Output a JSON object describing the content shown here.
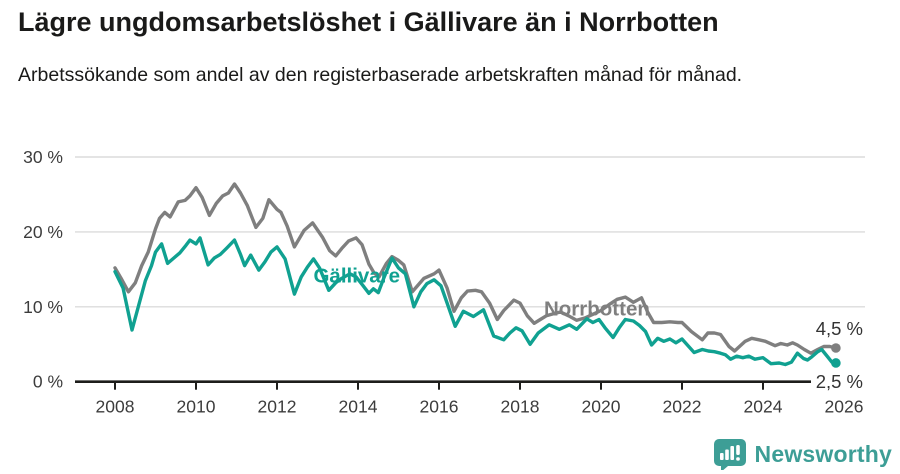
{
  "header": {
    "title": "Lägre ungdomsarbetslöshet i Gällivare än i Norrbotten",
    "subtitle": "Arbetssökande som andel av den registerbaserade arbetskraften månad för månad."
  },
  "footer": {
    "brand": "Newsworthy",
    "brand_color": "#3d9e96",
    "logo_icon": "newsworthy-speech-bubble-bar-chart-icon"
  },
  "colors": {
    "grid": "#dcdcdc",
    "axis": "#1d1d1b",
    "tick_text": "#3c3c3c",
    "background": "#ffffff"
  },
  "chart_data": {
    "type": "line",
    "title": "Lägre ungdomsarbetslöshet i Gällivare än i Norrbotten",
    "subtitle": "Arbetssökande som andel av den registerbaserade arbetskraften månad för månad.",
    "xlabel": "",
    "ylabel": "",
    "grid": "horizontal",
    "legend_position": "inline-labels",
    "x_ticks": [
      2008,
      2010,
      2012,
      2014,
      2016,
      2018,
      2020,
      2022,
      2024,
      2026
    ],
    "y_ticks": [
      {
        "value": 0,
        "label": "0 %"
      },
      {
        "value": 10,
        "label": "10 %"
      },
      {
        "value": 20,
        "label": "20 %"
      },
      {
        "value": 30,
        "label": "30 %"
      }
    ],
    "xlim": [
      2007.0,
      2026.55
    ],
    "ylim": [
      0,
      32
    ],
    "series": [
      {
        "name": "Norrbotten",
        "color": "#7f7f7f",
        "end_label": "4,5 %",
        "end_label_dy": -13,
        "label_pos": {
          "year": 2019.9,
          "value": 9.8
        },
        "points": [
          [
            2008.0,
            15.2
          ],
          [
            2008.15,
            13.8
          ],
          [
            2008.33,
            12.0
          ],
          [
            2008.5,
            13.2
          ],
          [
            2008.66,
            15.5
          ],
          [
            2008.82,
            17.3
          ],
          [
            2009.0,
            20.4
          ],
          [
            2009.1,
            21.8
          ],
          [
            2009.23,
            22.6
          ],
          [
            2009.36,
            22.0
          ],
          [
            2009.56,
            24.0
          ],
          [
            2009.73,
            24.2
          ],
          [
            2009.85,
            24.8
          ],
          [
            2010.0,
            25.9
          ],
          [
            2010.15,
            24.6
          ],
          [
            2010.33,
            22.2
          ],
          [
            2010.5,
            23.8
          ],
          [
            2010.66,
            24.8
          ],
          [
            2010.8,
            25.2
          ],
          [
            2010.95,
            26.4
          ],
          [
            2011.1,
            25.2
          ],
          [
            2011.27,
            23.5
          ],
          [
            2011.48,
            20.6
          ],
          [
            2011.65,
            21.8
          ],
          [
            2011.8,
            24.3
          ],
          [
            2012.0,
            23.0
          ],
          [
            2012.1,
            22.6
          ],
          [
            2012.25,
            20.8
          ],
          [
            2012.43,
            18.0
          ],
          [
            2012.67,
            20.2
          ],
          [
            2012.88,
            21.2
          ],
          [
            2013.12,
            19.3
          ],
          [
            2013.3,
            17.5
          ],
          [
            2013.45,
            16.8
          ],
          [
            2013.6,
            17.8
          ],
          [
            2013.77,
            18.8
          ],
          [
            2013.95,
            19.2
          ],
          [
            2014.1,
            18.3
          ],
          [
            2014.27,
            15.7
          ],
          [
            2014.4,
            14.5
          ],
          [
            2014.52,
            14.0
          ],
          [
            2014.7,
            15.8
          ],
          [
            2014.84,
            16.7
          ],
          [
            2015.0,
            16.2
          ],
          [
            2015.13,
            15.6
          ],
          [
            2015.34,
            12.0
          ],
          [
            2015.5,
            13.0
          ],
          [
            2015.63,
            13.8
          ],
          [
            2015.88,
            14.4
          ],
          [
            2016.0,
            14.9
          ],
          [
            2016.2,
            12.5
          ],
          [
            2016.37,
            9.4
          ],
          [
            2016.55,
            11.2
          ],
          [
            2016.7,
            12.1
          ],
          [
            2016.9,
            12.2
          ],
          [
            2017.05,
            12.0
          ],
          [
            2017.25,
            10.5
          ],
          [
            2017.44,
            8.3
          ],
          [
            2017.6,
            9.5
          ],
          [
            2017.85,
            10.9
          ],
          [
            2018.0,
            10.5
          ],
          [
            2018.18,
            8.8
          ],
          [
            2018.35,
            7.8
          ],
          [
            2018.5,
            8.3
          ],
          [
            2018.65,
            8.8
          ],
          [
            2018.85,
            9.1
          ],
          [
            2019.0,
            9.3
          ],
          [
            2019.2,
            8.8
          ],
          [
            2019.4,
            8.2
          ],
          [
            2019.6,
            8.5
          ],
          [
            2019.8,
            9.0
          ],
          [
            2020.0,
            9.5
          ],
          [
            2020.2,
            10.3
          ],
          [
            2020.4,
            11.0
          ],
          [
            2020.6,
            11.3
          ],
          [
            2020.8,
            10.6
          ],
          [
            2021.0,
            11.2
          ],
          [
            2021.15,
            9.3
          ],
          [
            2021.3,
            7.9
          ],
          [
            2021.5,
            7.9
          ],
          [
            2021.7,
            8.0
          ],
          [
            2021.9,
            7.9
          ],
          [
            2022.0,
            7.9
          ],
          [
            2022.23,
            6.7
          ],
          [
            2022.5,
            5.6
          ],
          [
            2022.64,
            6.5
          ],
          [
            2022.8,
            6.5
          ],
          [
            2022.95,
            6.3
          ],
          [
            2023.16,
            4.7
          ],
          [
            2023.3,
            4.1
          ],
          [
            2023.56,
            5.4
          ],
          [
            2023.72,
            5.8
          ],
          [
            2023.9,
            5.6
          ],
          [
            2024.06,
            5.4
          ],
          [
            2024.3,
            4.8
          ],
          [
            2024.44,
            5.1
          ],
          [
            2024.6,
            4.9
          ],
          [
            2024.73,
            5.2
          ],
          [
            2024.85,
            4.9
          ],
          [
            2025.02,
            4.3
          ],
          [
            2025.18,
            3.8
          ],
          [
            2025.35,
            4.3
          ],
          [
            2025.5,
            4.7
          ],
          [
            2025.65,
            4.7
          ],
          [
            2025.8,
            4.5
          ]
        ]
      },
      {
        "name": "Gällivare",
        "color": "#10a191",
        "end_label": "2,5 %",
        "end_label_dy": 25,
        "label_pos": {
          "year": 2013.97,
          "value": 14.2
        },
        "points": [
          [
            2008.0,
            14.7
          ],
          [
            2008.2,
            12.5
          ],
          [
            2008.42,
            6.9
          ],
          [
            2008.6,
            10.5
          ],
          [
            2008.75,
            13.5
          ],
          [
            2008.9,
            15.5
          ],
          [
            2009.0,
            17.3
          ],
          [
            2009.15,
            18.4
          ],
          [
            2009.3,
            15.8
          ],
          [
            2009.45,
            16.5
          ],
          [
            2009.6,
            17.2
          ],
          [
            2009.75,
            18.2
          ],
          [
            2009.85,
            18.9
          ],
          [
            2010.0,
            18.4
          ],
          [
            2010.1,
            19.2
          ],
          [
            2010.3,
            15.6
          ],
          [
            2010.45,
            16.5
          ],
          [
            2010.6,
            17.0
          ],
          [
            2010.75,
            17.8
          ],
          [
            2010.95,
            18.9
          ],
          [
            2011.1,
            17.0
          ],
          [
            2011.2,
            15.5
          ],
          [
            2011.35,
            16.9
          ],
          [
            2011.55,
            14.9
          ],
          [
            2011.7,
            16.0
          ],
          [
            2011.85,
            17.3
          ],
          [
            2012.0,
            18.0
          ],
          [
            2012.2,
            16.4
          ],
          [
            2012.43,
            11.7
          ],
          [
            2012.6,
            14.0
          ],
          [
            2012.75,
            15.3
          ],
          [
            2012.9,
            16.4
          ],
          [
            2013.05,
            15.2
          ],
          [
            2013.28,
            12.2
          ],
          [
            2013.45,
            13.2
          ],
          [
            2013.6,
            13.8
          ],
          [
            2013.8,
            14.4
          ],
          [
            2013.95,
            14.0
          ],
          [
            2014.1,
            13.0
          ],
          [
            2014.27,
            11.8
          ],
          [
            2014.38,
            12.4
          ],
          [
            2014.5,
            11.9
          ],
          [
            2014.65,
            14.0
          ],
          [
            2014.84,
            16.5
          ],
          [
            2015.0,
            15.2
          ],
          [
            2015.17,
            14.4
          ],
          [
            2015.38,
            10.0
          ],
          [
            2015.55,
            12.0
          ],
          [
            2015.7,
            13.1
          ],
          [
            2015.88,
            13.6
          ],
          [
            2016.05,
            12.8
          ],
          [
            2016.2,
            10.5
          ],
          [
            2016.4,
            7.4
          ],
          [
            2016.6,
            9.4
          ],
          [
            2016.85,
            8.7
          ],
          [
            2017.1,
            9.6
          ],
          [
            2017.35,
            6.1
          ],
          [
            2017.6,
            5.6
          ],
          [
            2017.75,
            6.5
          ],
          [
            2017.9,
            7.2
          ],
          [
            2018.05,
            6.8
          ],
          [
            2018.25,
            5.0
          ],
          [
            2018.45,
            6.5
          ],
          [
            2018.72,
            7.6
          ],
          [
            2018.97,
            7.0
          ],
          [
            2019.22,
            7.6
          ],
          [
            2019.4,
            7.0
          ],
          [
            2019.65,
            8.4
          ],
          [
            2019.8,
            7.9
          ],
          [
            2019.95,
            8.3
          ],
          [
            2020.1,
            7.2
          ],
          [
            2020.3,
            5.9
          ],
          [
            2020.45,
            7.2
          ],
          [
            2020.6,
            8.3
          ],
          [
            2020.8,
            8.1
          ],
          [
            2020.95,
            7.5
          ],
          [
            2021.1,
            6.7
          ],
          [
            2021.25,
            4.9
          ],
          [
            2021.4,
            5.8
          ],
          [
            2021.55,
            5.4
          ],
          [
            2021.7,
            5.7
          ],
          [
            2021.85,
            5.2
          ],
          [
            2022.0,
            5.7
          ],
          [
            2022.3,
            3.9
          ],
          [
            2022.5,
            4.3
          ],
          [
            2022.65,
            4.1
          ],
          [
            2022.8,
            4.0
          ],
          [
            2022.95,
            3.8
          ],
          [
            2023.07,
            3.6
          ],
          [
            2023.2,
            3.0
          ],
          [
            2023.35,
            3.4
          ],
          [
            2023.5,
            3.2
          ],
          [
            2023.65,
            3.4
          ],
          [
            2023.8,
            3.0
          ],
          [
            2024.0,
            3.2
          ],
          [
            2024.2,
            2.4
          ],
          [
            2024.4,
            2.5
          ],
          [
            2024.55,
            2.3
          ],
          [
            2024.7,
            2.6
          ],
          [
            2024.85,
            3.8
          ],
          [
            2025.0,
            3.1
          ],
          [
            2025.1,
            2.9
          ],
          [
            2025.2,
            3.3
          ],
          [
            2025.35,
            4.0
          ],
          [
            2025.45,
            4.3
          ],
          [
            2025.6,
            3.3
          ],
          [
            2025.7,
            2.6
          ],
          [
            2025.8,
            2.5
          ]
        ]
      }
    ]
  }
}
